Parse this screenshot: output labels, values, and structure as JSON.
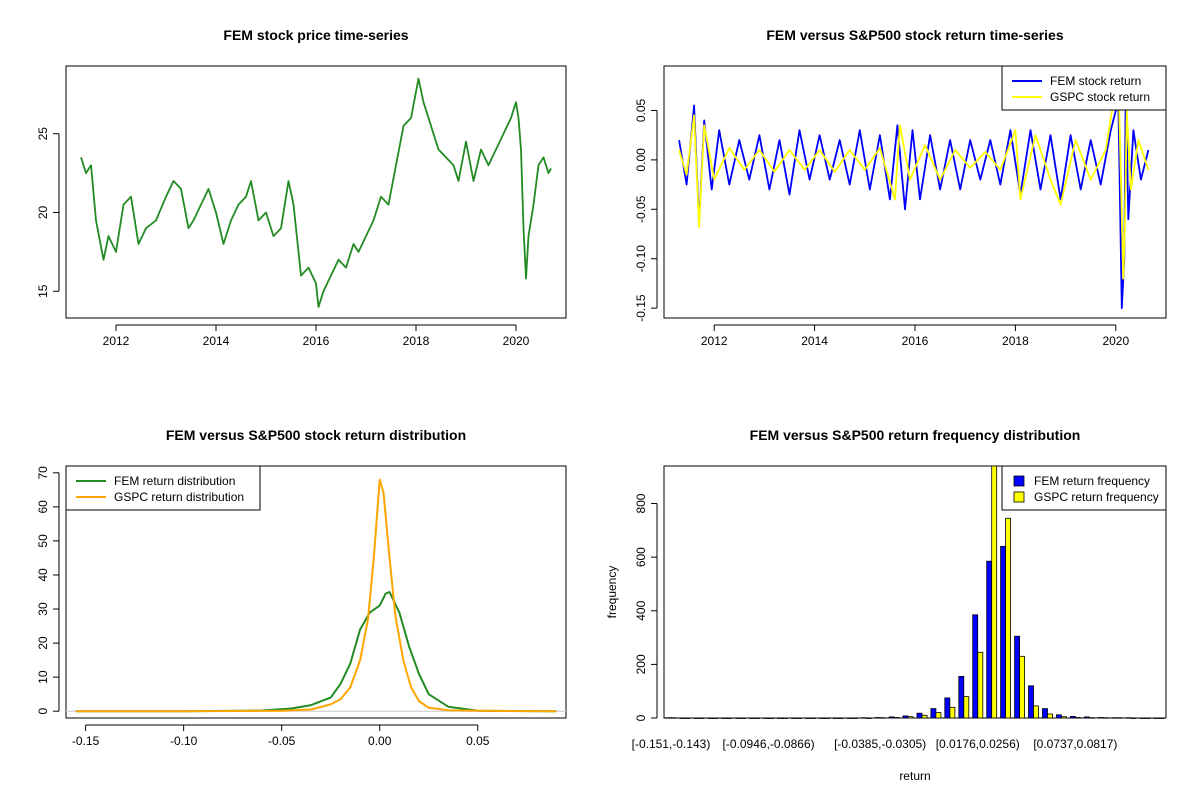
{
  "chart_data": [
    {
      "id": "p1",
      "type": "line",
      "title": "FEM stock price time-series",
      "xlabel": "",
      "ylabel": "",
      "xlim": [
        2011.0,
        2021.0
      ],
      "ylim": [
        13.3,
        29.3
      ],
      "x_ticks": [
        2012,
        2014,
        2016,
        2018,
        2020
      ],
      "x_tick_labels": [
        "2012",
        "2014",
        "2016",
        "2018",
        "2020"
      ],
      "y_ticks": [
        15,
        20,
        25
      ],
      "y_tick_labels": [
        "15",
        "20",
        "25"
      ],
      "series": [
        {
          "color": "#228B22",
          "x": [
            2011.3,
            2011.4,
            2011.5,
            2011.6,
            2011.75,
            2011.85,
            2012.0,
            2012.15,
            2012.3,
            2012.45,
            2012.6,
            2012.8,
            2013.0,
            2013.15,
            2013.3,
            2013.45,
            2013.55,
            2013.7,
            2013.85,
            2014.0,
            2014.15,
            2014.3,
            2014.45,
            2014.6,
            2014.7,
            2014.85,
            2015.0,
            2015.15,
            2015.3,
            2015.45,
            2015.55,
            2015.7,
            2015.85,
            2016.0,
            2016.05,
            2016.15,
            2016.3,
            2016.45,
            2016.6,
            2016.75,
            2016.85,
            2017.0,
            2017.15,
            2017.3,
            2017.45,
            2017.6,
            2017.75,
            2017.9,
            2018.05,
            2018.15,
            2018.3,
            2018.45,
            2018.6,
            2018.75,
            2018.85,
            2019.0,
            2019.15,
            2019.3,
            2019.45,
            2019.6,
            2019.75,
            2019.9,
            2020.0,
            2020.05,
            2020.1,
            2020.15,
            2020.2,
            2020.25,
            2020.35,
            2020.45,
            2020.55,
            2020.65,
            2020.7
          ],
          "y": [
            23.5,
            22.5,
            23.0,
            19.5,
            17.0,
            18.5,
            17.5,
            20.5,
            21.0,
            18.0,
            19.0,
            19.5,
            21.0,
            22.0,
            21.5,
            19.0,
            19.5,
            20.5,
            21.5,
            20.0,
            18.0,
            19.5,
            20.5,
            21.0,
            22.0,
            19.5,
            20.0,
            18.5,
            19.0,
            22.0,
            20.5,
            16.0,
            16.5,
            15.5,
            14.0,
            15.0,
            16.0,
            17.0,
            16.5,
            18.0,
            17.5,
            18.5,
            19.5,
            21.0,
            20.5,
            23.0,
            25.5,
            26.0,
            28.5,
            27.0,
            25.5,
            24.0,
            23.5,
            23.0,
            22.0,
            24.5,
            22.0,
            24.0,
            23.0,
            24.0,
            25.0,
            26.0,
            27.0,
            26.0,
            24.0,
            19.0,
            15.8,
            18.5,
            20.5,
            23.0,
            23.5,
            22.5,
            22.8
          ]
        }
      ]
    },
    {
      "id": "p2",
      "type": "line",
      "title": "FEM versus S&P500 stock return time-series",
      "xlabel": "",
      "ylabel": "",
      "xlim": [
        2011.0,
        2021.0
      ],
      "ylim": [
        -0.16,
        0.095
      ],
      "x_ticks": [
        2012,
        2014,
        2016,
        2018,
        2020
      ],
      "x_tick_labels": [
        "2012",
        "2014",
        "2016",
        "2018",
        "2020"
      ],
      "y_ticks": [
        -0.15,
        -0.1,
        -0.05,
        0.0,
        0.05
      ],
      "y_tick_labels": [
        "-0.15",
        "-0.10",
        "-0.05",
        "0.00",
        "0.05"
      ],
      "legend": {
        "position": "top-right",
        "entries": [
          "FEM stock return",
          "GSPC stock return"
        ]
      },
      "series": [
        {
          "name": "FEM stock return",
          "color": "#0000FF",
          "x": [
            2011.3,
            2011.45,
            2011.6,
            2011.7,
            2011.8,
            2011.95,
            2012.1,
            2012.3,
            2012.5,
            2012.7,
            2012.9,
            2013.1,
            2013.3,
            2013.5,
            2013.7,
            2013.9,
            2014.1,
            2014.3,
            2014.5,
            2014.7,
            2014.9,
            2015.1,
            2015.3,
            2015.5,
            2015.65,
            2015.8,
            2015.95,
            2016.1,
            2016.3,
            2016.5,
            2016.7,
            2016.9,
            2017.1,
            2017.3,
            2017.5,
            2017.7,
            2017.9,
            2018.1,
            2018.3,
            2018.5,
            2018.7,
            2018.9,
            2019.1,
            2019.3,
            2019.5,
            2019.7,
            2019.9,
            2020.05,
            2020.12,
            2020.17,
            2020.2,
            2020.25,
            2020.35,
            2020.5,
            2020.65
          ],
          "y": [
            0.02,
            -0.025,
            0.055,
            -0.065,
            0.04,
            -0.03,
            0.03,
            -0.025,
            0.02,
            -0.02,
            0.025,
            -0.03,
            0.02,
            -0.035,
            0.03,
            -0.02,
            0.025,
            -0.02,
            0.02,
            -0.025,
            0.03,
            -0.03,
            0.025,
            -0.04,
            0.035,
            -0.05,
            0.03,
            -0.04,
            0.025,
            -0.03,
            0.02,
            -0.03,
            0.02,
            -0.02,
            0.02,
            -0.025,
            0.03,
            -0.035,
            0.03,
            -0.03,
            0.025,
            -0.04,
            0.025,
            -0.03,
            0.02,
            -0.025,
            0.03,
            0.06,
            -0.15,
            -0.1,
            0.08,
            -0.06,
            0.03,
            -0.02,
            0.01
          ]
        },
        {
          "name": "GSPC stock return",
          "color": "#FFFF00",
          "x": [
            2011.3,
            2011.45,
            2011.6,
            2011.7,
            2011.8,
            2012.0,
            2012.3,
            2012.6,
            2012.9,
            2013.2,
            2013.5,
            2013.8,
            2014.1,
            2014.4,
            2014.7,
            2015.0,
            2015.3,
            2015.6,
            2015.7,
            2015.9,
            2016.2,
            2016.5,
            2016.8,
            2017.1,
            2017.4,
            2017.7,
            2018.0,
            2018.1,
            2018.4,
            2018.7,
            2018.9,
            2019.2,
            2019.5,
            2019.8,
            2020.05,
            2020.15,
            2020.18,
            2020.22,
            2020.3,
            2020.45,
            2020.65
          ],
          "y": [
            0.01,
            -0.015,
            0.045,
            -0.068,
            0.035,
            -0.02,
            0.012,
            -0.01,
            0.01,
            -0.012,
            0.01,
            -0.01,
            0.01,
            -0.012,
            0.01,
            -0.01,
            0.012,
            -0.04,
            0.035,
            -0.02,
            0.015,
            -0.02,
            0.01,
            -0.008,
            0.008,
            -0.01,
            0.03,
            -0.04,
            0.025,
            -0.02,
            -0.045,
            0.02,
            -0.02,
            0.01,
            0.09,
            -0.12,
            -0.07,
            0.05,
            -0.03,
            0.02,
            -0.01
          ]
        }
      ]
    },
    {
      "id": "p3",
      "type": "line",
      "title": "FEM versus S&P500 stock return distribution",
      "xlabel": "",
      "ylabel": "",
      "xlim": [
        -0.16,
        0.095
      ],
      "ylim": [
        -2,
        72
      ],
      "x_ticks": [
        -0.15,
        -0.1,
        -0.05,
        0.0,
        0.05
      ],
      "x_tick_labels": [
        "-0.15",
        "-0.10",
        "-0.05",
        "0.00",
        "0.05"
      ],
      "y_ticks": [
        0,
        10,
        20,
        30,
        40,
        50,
        60,
        70
      ],
      "y_tick_labels": [
        "0",
        "10",
        "20",
        "30",
        "40",
        "50",
        "60",
        "70"
      ],
      "legend": {
        "position": "top-left",
        "entries": [
          "FEM return distribution",
          "GSPC return distribution"
        ]
      },
      "series": [
        {
          "name": "FEM return distribution",
          "color": "#228B22",
          "x": [
            -0.155,
            -0.1,
            -0.06,
            -0.045,
            -0.035,
            -0.025,
            -0.02,
            -0.015,
            -0.01,
            -0.005,
            0.0,
            0.003,
            0.005,
            0.01,
            0.015,
            0.02,
            0.025,
            0.035,
            0.05,
            0.09
          ],
          "y": [
            0,
            0,
            0.2,
            0.8,
            1.8,
            4,
            8,
            14,
            24,
            29,
            31,
            34.5,
            35,
            29,
            19,
            11,
            5,
            1.3,
            0.1,
            0
          ]
        },
        {
          "name": "GSPC return distribution",
          "color": "#FFA500",
          "x": [
            -0.155,
            -0.1,
            -0.05,
            -0.035,
            -0.025,
            -0.02,
            -0.015,
            -0.01,
            -0.006,
            -0.003,
            0.0,
            0.002,
            0.005,
            0.008,
            0.012,
            0.016,
            0.02,
            0.025,
            0.035,
            0.05,
            0.09
          ],
          "y": [
            0,
            0,
            0.1,
            0.5,
            2,
            3.5,
            7,
            15,
            27,
            45,
            68,
            64,
            45,
            28,
            15,
            7,
            3,
            1,
            0.3,
            0.1,
            0
          ]
        }
      ]
    },
    {
      "id": "p4",
      "type": "bar",
      "title": "FEM versus S&P500 return frequency distribution",
      "xlabel": "return",
      "ylabel": "frequency",
      "ylim": [
        0,
        940
      ],
      "y_ticks": [
        0,
        200,
        400,
        600,
        800
      ],
      "y_tick_labels": [
        "0",
        "200",
        "400",
        "600",
        "800"
      ],
      "category_tick_labels": [
        {
          "index": 0,
          "label": "[-0.151,-0.143)"
        },
        {
          "index": 7,
          "label": "[-0.0946,-0.0866)"
        },
        {
          "index": 15,
          "label": "[-0.0385,-0.0305)"
        },
        {
          "index": 22,
          "label": "[0.0176,0.0256)"
        },
        {
          "index": 29,
          "label": "[0.0737,0.0817)"
        }
      ],
      "legend": {
        "position": "top-right",
        "entries": [
          "FEM return frequency",
          "GSPC return frequency"
        ]
      },
      "series": [
        {
          "name": "FEM return frequency",
          "color": "#0000FF",
          "values": [
            1,
            0,
            0,
            0,
            0,
            0,
            0,
            0,
            0,
            0,
            0,
            0,
            0,
            0,
            1,
            2,
            4,
            8,
            18,
            35,
            75,
            155,
            385,
            585,
            640,
            305,
            120,
            35,
            12,
            6,
            4,
            2,
            1,
            1,
            0,
            0
          ]
        },
        {
          "name": "GSPC return frequency",
          "color": "#FFFF00",
          "values": [
            1,
            0,
            0,
            0,
            0,
            0,
            0,
            0,
            0,
            0,
            0,
            0,
            0,
            0,
            0,
            1,
            2,
            5,
            10,
            20,
            40,
            80,
            245,
            940,
            745,
            230,
            45,
            15,
            5,
            2,
            1,
            1,
            1,
            0,
            0,
            0
          ]
        }
      ]
    }
  ]
}
